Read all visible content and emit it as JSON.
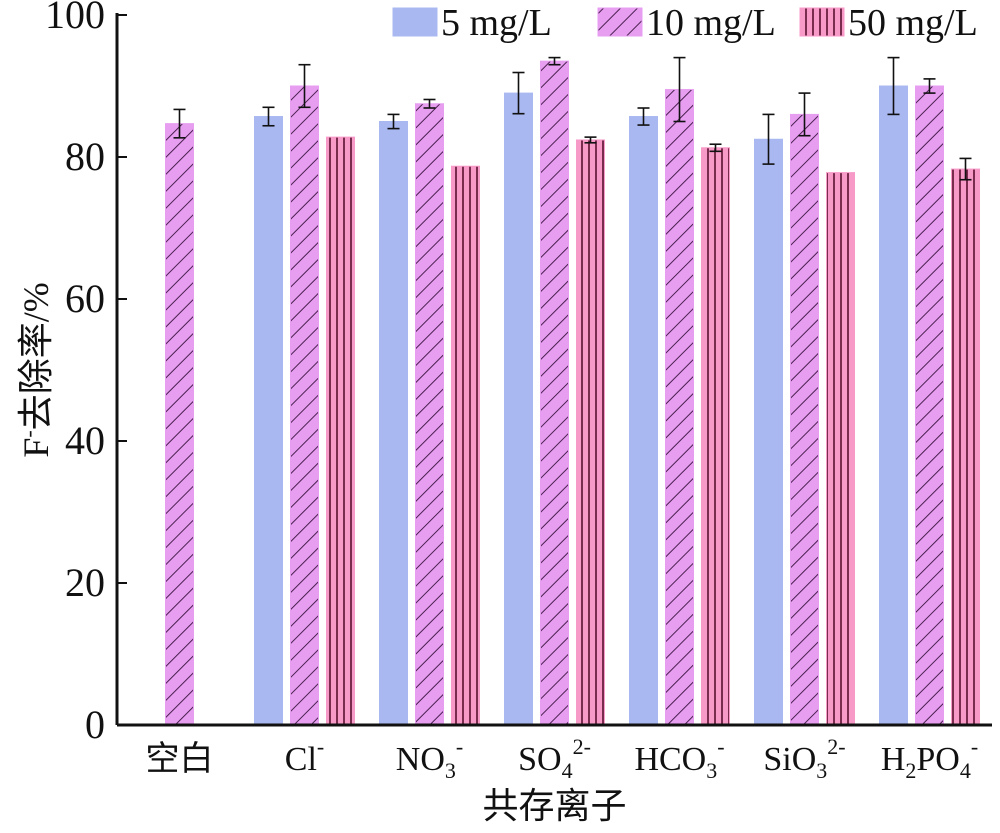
{
  "chart_data": {
    "type": "bar",
    "ylabel_main": "F",
    "ylabel_sup": "-",
    "ylabel_rest": "去除率/%",
    "xlabel": "共存离子",
    "ylim": [
      0,
      100
    ],
    "yticks": [
      0,
      20,
      40,
      60,
      80,
      100
    ],
    "categories": [
      {
        "base": "空白",
        "sub": "",
        "mid": "",
        "sup": ""
      },
      {
        "base": "Cl",
        "sub": "",
        "mid": "",
        "sup": "-"
      },
      {
        "base": "NO",
        "sub": "3",
        "mid": "",
        "sup": "-"
      },
      {
        "base": "SO",
        "sub": "4",
        "mid": "",
        "sup": "2-"
      },
      {
        "base": "HCO",
        "sub": "3",
        "mid": "",
        "sup": "-"
      },
      {
        "base": "SiO",
        "sub": "3",
        "mid": "",
        "sup": "2-"
      },
      {
        "base": "H",
        "sub": "2",
        "mid": "PO",
        "sub2": "4",
        "sup": "-"
      }
    ],
    "series": [
      {
        "name": "5 mg/L",
        "color": "#a9b8f0",
        "pattern": "none",
        "values": [
          null,
          85.7,
          85.0,
          89.0,
          85.7,
          82.5,
          90.0
        ],
        "errors": [
          null,
          1.3,
          1.0,
          2.9,
          1.2,
          3.5,
          4.0
        ]
      },
      {
        "name": "10 mg/L",
        "color": "#e79ef0",
        "pattern": "diag",
        "values": [
          84.7,
          90.0,
          87.5,
          93.5,
          89.5,
          86.0,
          90.0
        ],
        "errors": [
          2.0,
          3.0,
          0.6,
          0.5,
          4.5,
          3.0,
          1.0
        ]
      },
      {
        "name": "50 mg/L",
        "color": "#f79ac8",
        "pattern": "vert",
        "values": [
          null,
          82.8,
          78.7,
          82.4,
          81.3,
          77.8,
          78.3
        ],
        "errors": [
          null,
          0.0,
          0.0,
          0.4,
          0.5,
          0.0,
          1.5
        ]
      }
    ],
    "legend_position": "top-right",
    "grid": false
  }
}
